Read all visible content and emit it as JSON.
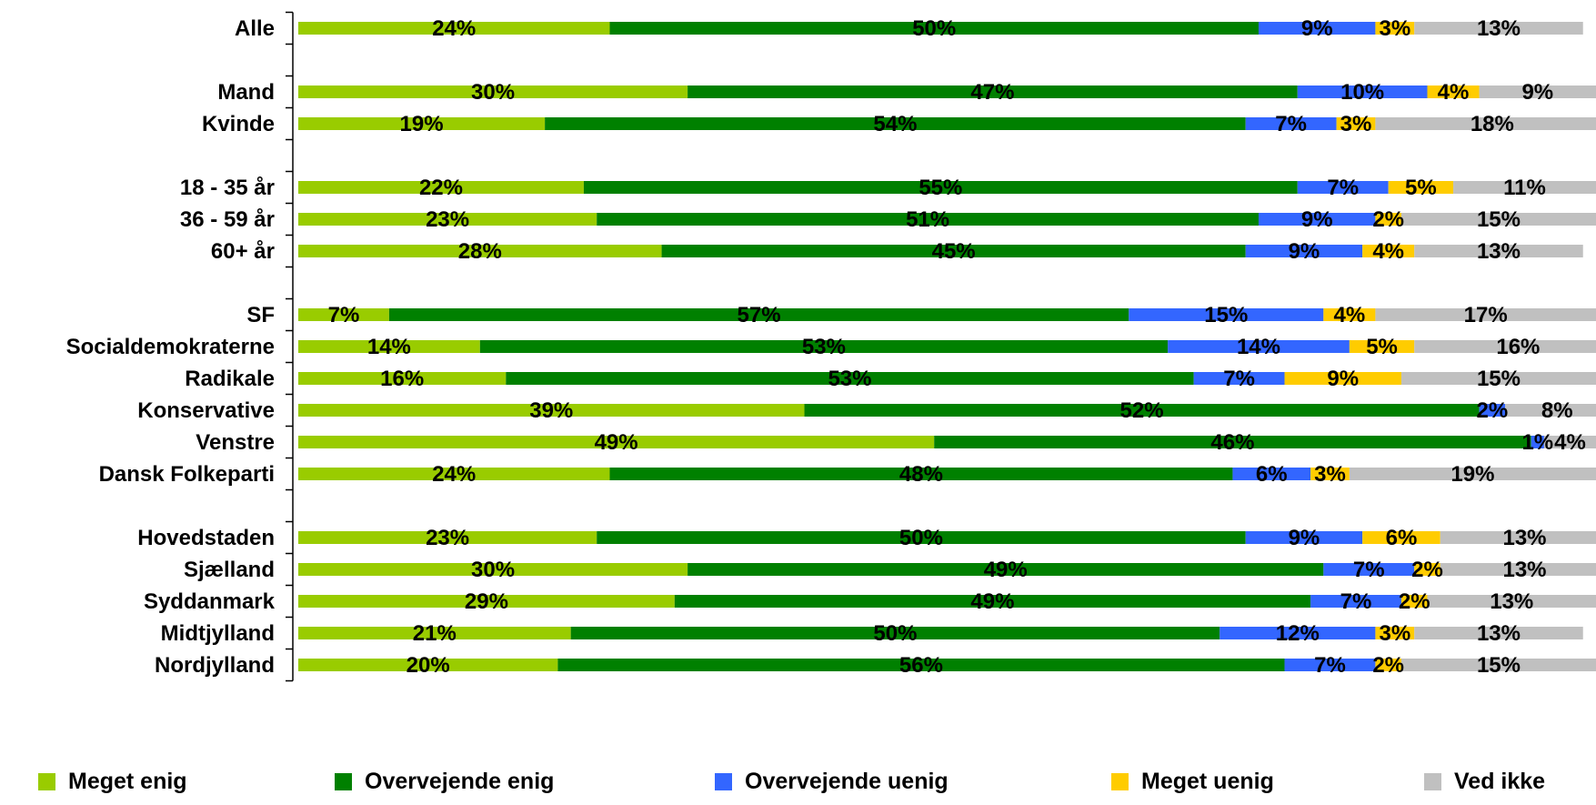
{
  "chart_data": {
    "type": "bar",
    "orientation": "horizontal",
    "stacked": true,
    "categories": [
      "Alle",
      "",
      "Mand",
      "Kvinde",
      "",
      "18 - 35 år",
      "36 - 59 år",
      "60+ år",
      "",
      "SF",
      "Socialdemokraterne",
      "Radikale",
      "Konservative",
      "Venstre",
      "Dansk Folkeparti",
      "",
      "Hovedstaden",
      "Sjælland",
      "Syddanmark",
      "Midtjylland",
      "Nordjylland"
    ],
    "series": [
      {
        "name": "Meget enig",
        "color": "#99CC00",
        "values": [
          24,
          null,
          30,
          19,
          null,
          22,
          23,
          28,
          null,
          7,
          14,
          16,
          39,
          49,
          24,
          null,
          23,
          30,
          29,
          21,
          20
        ]
      },
      {
        "name": "Overvejende enig",
        "color": "#008000",
        "values": [
          50,
          null,
          47,
          54,
          null,
          55,
          51,
          45,
          null,
          57,
          53,
          53,
          52,
          46,
          48,
          null,
          50,
          49,
          49,
          50,
          56
        ]
      },
      {
        "name": "Overvejende uenig",
        "color": "#3366FF",
        "values": [
          9,
          null,
          10,
          7,
          null,
          7,
          9,
          9,
          null,
          15,
          14,
          7,
          2,
          1,
          6,
          null,
          9,
          7,
          7,
          12,
          7
        ]
      },
      {
        "name": "Meget uenig",
        "color": "#FFCC00",
        "values": [
          3,
          null,
          4,
          3,
          null,
          5,
          2,
          4,
          null,
          4,
          5,
          9,
          0,
          0,
          3,
          null,
          6,
          2,
          2,
          3,
          2
        ]
      },
      {
        "name": "Ved ikke",
        "color": "#C0C0C0",
        "values": [
          13,
          null,
          9,
          18,
          null,
          11,
          15,
          13,
          null,
          17,
          16,
          15,
          8,
          4,
          19,
          null,
          13,
          13,
          13,
          13,
          15
        ]
      }
    ],
    "label_format": "{v}%",
    "xlim": [
      0,
      100
    ],
    "legend_position": "bottom",
    "grid": false
  }
}
